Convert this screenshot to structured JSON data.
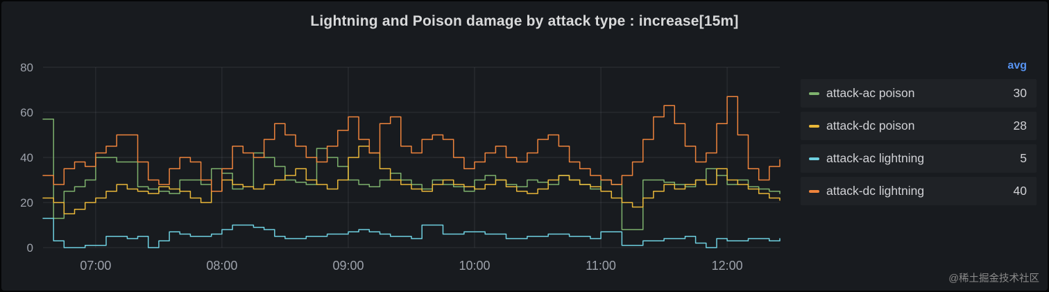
{
  "panel": {
    "watermark": "@稀土掘金技术社区"
  },
  "legend": {
    "header": "avg",
    "header_color": "#5794f2"
  },
  "chart_data": {
    "type": "line",
    "title": "Lightning and Poison damage by attack type : increase[15m]",
    "xlabel": "",
    "ylabel": "",
    "ylim": [
      0,
      80
    ],
    "y_ticks": [
      0,
      20,
      40,
      60,
      80
    ],
    "x_ticks": [
      "07:00",
      "08:00",
      "09:00",
      "10:00",
      "11:00",
      "12:00"
    ],
    "x_start": "06:35",
    "x_step_minutes": 5,
    "grid": true,
    "legend_position": "right",
    "line_style": "step-after",
    "series": [
      {
        "name": "attack-ac poison",
        "color": "#7eb26d",
        "avg": 30,
        "values": [
          57,
          13,
          25,
          27,
          30,
          40,
          40,
          38,
          38,
          27,
          26,
          25,
          24,
          30,
          30,
          28,
          35,
          33,
          26,
          27,
          42,
          40,
          36,
          30,
          29,
          28,
          44,
          40,
          36,
          30,
          28,
          27,
          30,
          33,
          30,
          28,
          26,
          30,
          28,
          27,
          25,
          30,
          32,
          30,
          28,
          27,
          30,
          29,
          28,
          32,
          30,
          28,
          26,
          30,
          28,
          8,
          8,
          30,
          30,
          29,
          28,
          27,
          30,
          35,
          32,
          28,
          30,
          27,
          26,
          25,
          24
        ]
      },
      {
        "name": "attack-dc poison",
        "color": "#eab839",
        "avg": 28,
        "values": [
          22,
          20,
          15,
          17,
          20,
          22,
          25,
          28,
          26,
          25,
          24,
          27,
          26,
          25,
          22,
          20,
          25,
          30,
          28,
          27,
          26,
          28,
          30,
          32,
          35,
          30,
          28,
          26,
          30,
          40,
          45,
          42,
          35,
          30,
          28,
          26,
          25,
          28,
          30,
          28,
          27,
          26,
          28,
          30,
          27,
          25,
          24,
          26,
          30,
          32,
          30,
          28,
          27,
          25,
          22,
          20,
          18,
          22,
          25,
          28,
          26,
          28,
          30,
          28,
          35,
          30,
          28,
          26,
          24,
          22,
          21
        ]
      },
      {
        "name": "attack-ac lightning",
        "color": "#6ed0e0",
        "avg": 5,
        "values": [
          13,
          3,
          0,
          0,
          1,
          1,
          5,
          5,
          4,
          5,
          0,
          3,
          7,
          6,
          5,
          5,
          6,
          8,
          10,
          10,
          9,
          8,
          5,
          4,
          4,
          5,
          5,
          6,
          6,
          7,
          8,
          7,
          6,
          5,
          5,
          4,
          10,
          10,
          6,
          6,
          7,
          7,
          6,
          6,
          4,
          4,
          5,
          5,
          6,
          6,
          5,
          5,
          4,
          7,
          7,
          1,
          1,
          3,
          3,
          4,
          4,
          5,
          2,
          0,
          4,
          3,
          3,
          4,
          4,
          3,
          4
        ]
      },
      {
        "name": "attack-dc lightning",
        "color": "#ef843c",
        "avg": 40,
        "values": [
          32,
          28,
          35,
          38,
          36,
          42,
          45,
          50,
          50,
          38,
          30,
          28,
          35,
          40,
          38,
          30,
          25,
          35,
          45,
          42,
          40,
          48,
          55,
          50,
          45,
          40,
          38,
          45,
          52,
          58,
          48,
          42,
          55,
          58,
          45,
          42,
          48,
          50,
          48,
          40,
          35,
          38,
          42,
          45,
          40,
          38,
          42,
          48,
          50,
          45,
          38,
          35,
          32,
          30,
          28,
          32,
          38,
          48,
          58,
          63,
          55,
          45,
          38,
          42,
          55,
          67,
          50,
          35,
          30,
          36,
          39
        ]
      }
    ]
  }
}
